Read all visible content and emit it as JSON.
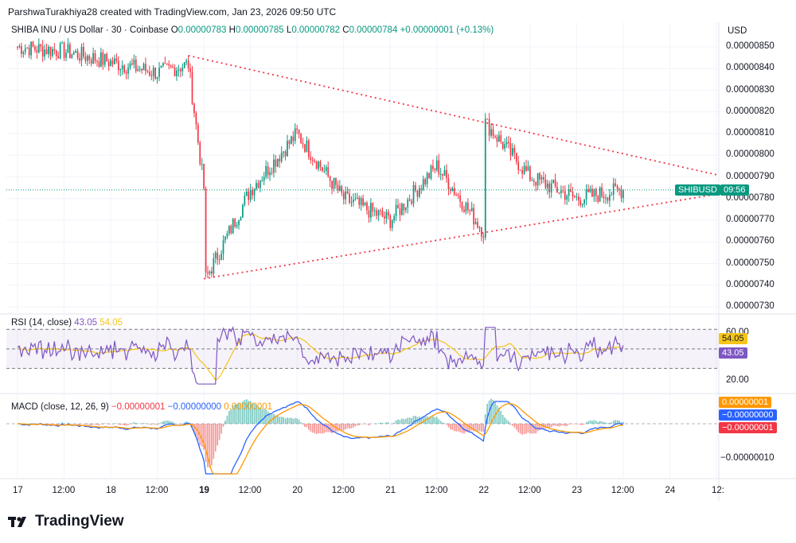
{
  "header": {
    "attribution": "ParshwaTurakhiya28 created with TradingView.com, Jan 23, 2026 09:50 UTC"
  },
  "legend": {
    "symbol": "SHIBA INU / US Dollar · 30 · Coinbase",
    "o_label": "O",
    "o_val": "0.00000783",
    "h_label": "H",
    "h_val": "0.00000785",
    "l_label": "L",
    "l_val": "0.00000782",
    "c_label": "C",
    "c_val": "0.00000784",
    "chg": "+0.00000001 (+0.13%)"
  },
  "price_axis": {
    "currency": "USD",
    "ticks": [
      "0.00000850",
      "0.00000840",
      "0.00000830",
      "0.00000820",
      "0.00000810",
      "0.00000800",
      "0.00000790",
      "0.00000780",
      "0.00000770",
      "0.00000760",
      "0.00000750",
      "0.00000740",
      "0.00000730"
    ],
    "symbol_tag": "SHIBUSD",
    "countdown": "09:56"
  },
  "rsi": {
    "label": "RSI (14, close)",
    "rsi_val": "43.05",
    "ma_val": "54.05",
    "ticks": [
      "60.00",
      "20.00"
    ]
  },
  "macd": {
    "label": "MACD (close, 12, 26, 9)",
    "hist_val": "−0.00000001",
    "macd_val": "−0.00000000",
    "signal_val": "0.00000001",
    "tick": "−0.00000010"
  },
  "time_axis": {
    "ticks": [
      "17",
      "12:00",
      "18",
      "12:00",
      "19",
      "12:00",
      "20",
      "12:00",
      "21",
      "12:00",
      "22",
      "12:00",
      "23",
      "12:00",
      "24",
      "12:"
    ]
  },
  "brand": {
    "name": "TradingView"
  },
  "colors": {
    "up": "#089981",
    "down": "#f23645",
    "rsi": "#7e57c2",
    "rsi_ma": "#f5c518",
    "macd": "#2962ff",
    "signal": "#ff9800",
    "trend": "#f23645"
  },
  "chart_data": [
    {
      "type": "candlestick",
      "title": "SHIBA INU / US Dollar · 30 · Coinbase",
      "ylabel": "USD",
      "ylim": [
        7.3e-06,
        8.5e-06
      ],
      "x_range": [
        "Jan 17",
        "Jan 24 12:00"
      ],
      "approx_close_path": [
        {
          "x": "Jan 17 00:00",
          "close": 8.5e-06
        },
        {
          "x": "Jan 17 12:00",
          "close": 8.48e-06
        },
        {
          "x": "Jan 18 00:00",
          "close": 8.43e-06
        },
        {
          "x": "Jan 18 12:00",
          "close": 8.38e-06
        },
        {
          "x": "Jan 18 20:00",
          "close": 8.42e-06
        },
        {
          "x": "Jan 19 00:00",
          "close": 7.85e-06
        },
        {
          "x": "Jan 19 00:30",
          "close": 7.43e-06
        },
        {
          "x": "Jan 19 12:00",
          "close": 7.84e-06
        },
        {
          "x": "Jan 20 00:00",
          "close": 8.1e-06
        },
        {
          "x": "Jan 20 12:00",
          "close": 7.8e-06
        },
        {
          "x": "Jan 21 00:00",
          "close": 7.7e-06
        },
        {
          "x": "Jan 21 12:00",
          "close": 7.95e-06
        },
        {
          "x": "Jan 22 00:00",
          "close": 7.65e-06
        },
        {
          "x": "Jan 22 00:30",
          "close": 8.15e-06
        },
        {
          "x": "Jan 22 12:00",
          "close": 7.9e-06
        },
        {
          "x": "Jan 23 00:00",
          "close": 7.8e-06
        },
        {
          "x": "Jan 23 12:00",
          "close": 7.84e-06
        }
      ],
      "last_price": 7.84e-06,
      "trendlines": [
        {
          "from": {
            "x": "Jan 18 20:00",
            "y": 8.46e-06
          },
          "to": {
            "x": "Jan 24 12:00",
            "y": 7.91e-06
          }
        },
        {
          "from": {
            "x": "Jan 19 00:00",
            "y": 7.43e-06
          },
          "to": {
            "x": "Jan 24 12:00",
            "y": 7.82e-06
          }
        }
      ]
    },
    {
      "type": "line",
      "title": "RSI (14, close)",
      "series": [
        {
          "name": "RSI",
          "last": 43.05
        },
        {
          "name": "RSI MA",
          "last": 54.05
        }
      ],
      "bands": [
        30,
        70
      ]
    },
    {
      "type": "line",
      "title": "MACD (close, 12, 26, 9)",
      "series": [
        {
          "name": "MACD",
          "last": -0.0
        },
        {
          "name": "Signal",
          "last": 1e-08
        },
        {
          "name": "Histogram",
          "last": -1e-08
        }
      ]
    }
  ]
}
